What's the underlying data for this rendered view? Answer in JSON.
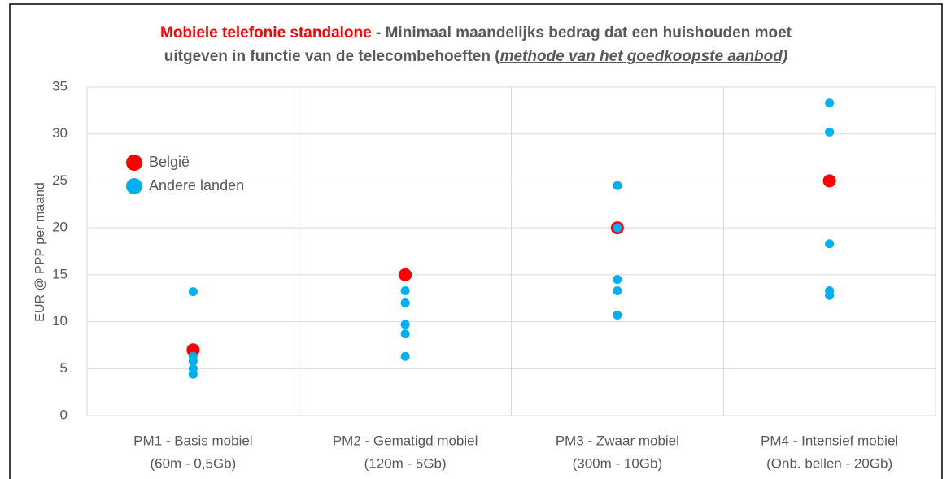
{
  "chart_data": {
    "type": "scatter",
    "title": [
      "Mobiele telefonie standalone",
      " - Minimaal maandelijks bedrag dat een huishouden moet",
      "uitgeven in functie van de telecombehoeften (",
      "methode van het goedkoopste aanbod)"
    ],
    "y_label": "EUR @ PPP per maand",
    "categories": [
      [
        "PM1 - Basis mobiel",
        "(60m - 0,5Gb)"
      ],
      [
        "PM2 - Gematigd mobiel",
        "(120m - 5Gb)"
      ],
      [
        "PM3 - Zwaar mobiel",
        "(300m - 10Gb)"
      ],
      [
        "PM4 - Intensief mobiel",
        "(Onb. bellen - 20Gb)"
      ]
    ],
    "series": [
      {
        "name": "België",
        "color": "#ff0000",
        "values": [
          [
            7
          ],
          [
            15
          ],
          [
            20
          ],
          [
            25
          ]
        ]
      },
      {
        "name": "Andere landen",
        "color": "#00b0f0",
        "values": [
          [
            13.2,
            6.3,
            5.8,
            5.0,
            4.4
          ],
          [
            13.3,
            12.0,
            9.7,
            8.7,
            6.3
          ],
          [
            24.5,
            20.0,
            14.5,
            13.3,
            10.7
          ],
          [
            33.3,
            30.2,
            18.3,
            13.3,
            12.8
          ]
        ]
      }
    ],
    "ylim": [
      0,
      35
    ],
    "yticks": [
      0,
      5,
      10,
      15,
      20,
      25,
      30,
      35
    ],
    "grid": true,
    "legend": "upper left"
  }
}
